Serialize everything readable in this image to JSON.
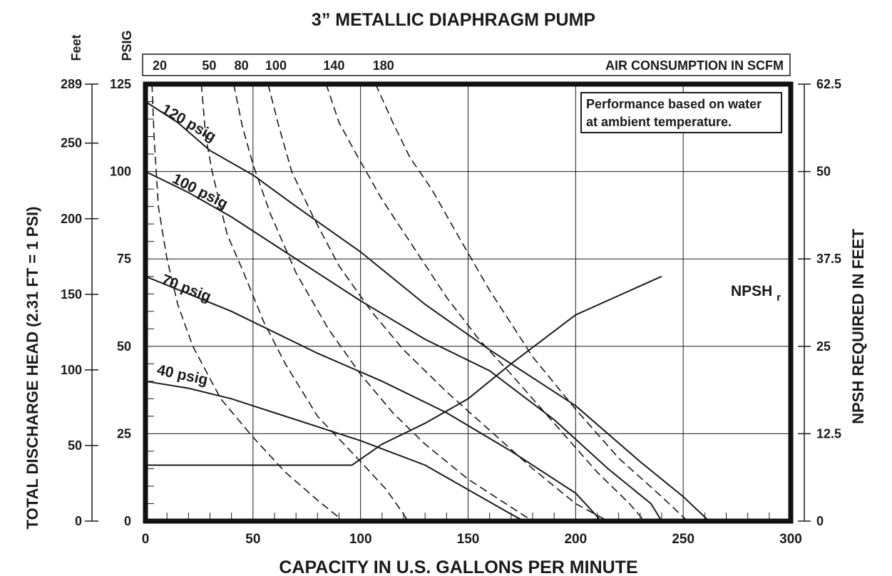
{
  "chart_data": {
    "type": "line",
    "title": "3” METALLIC DIAPHRAGM PUMP",
    "xlabel": "CAPACITY IN U.S. GALLONS PER MINUTE",
    "ylabel_feet": "TOTAL DISCHARGE HEAD (2.31 FT = 1 PSI)",
    "ylabel_right": "NPSH REQUIRED IN FEET",
    "feet_unit": "Feet",
    "psig_unit": "PSIG",
    "xlim": [
      0,
      300
    ],
    "ylim_psig": [
      0,
      125
    ],
    "ylim_feet": [
      0,
      289
    ],
    "ylim_npsh": [
      0,
      62.5
    ],
    "x_ticks": [
      "0",
      "50",
      "100",
      "150",
      "200",
      "250",
      "300"
    ],
    "psig_ticks": [
      "0",
      "25",
      "50",
      "75",
      "100",
      "125"
    ],
    "feet_ticks": [
      "0",
      "50",
      "100",
      "150",
      "200",
      "250",
      "289"
    ],
    "npsh_ticks": [
      "0",
      "12.5",
      "25",
      "37.5",
      "50",
      "62.5"
    ],
    "grid": true,
    "note_line1": "Performance based on water",
    "note_line2": "at ambient temperature.",
    "npsh_label": "NPSH",
    "npsh_label_sub": "r",
    "air_header": "AIR CONSUMPTION IN SCFM",
    "air_scfm": [
      {
        "label": "20",
        "points": [
          [
            3,
            125
          ],
          [
            4,
            110
          ],
          [
            6,
            90
          ],
          [
            10,
            75
          ],
          [
            15,
            62
          ],
          [
            22,
            50
          ],
          [
            35,
            35
          ],
          [
            50,
            24
          ],
          [
            65,
            14
          ],
          [
            80,
            6
          ],
          [
            90,
            1
          ]
        ]
      },
      {
        "label": "50",
        "points": [
          [
            26,
            125
          ],
          [
            28,
            110
          ],
          [
            31,
            100
          ],
          [
            38,
            82
          ],
          [
            45,
            72
          ],
          [
            55,
            57
          ],
          [
            65,
            45
          ],
          [
            80,
            30
          ],
          [
            100,
            17
          ],
          [
            112,
            9
          ],
          [
            120,
            2
          ],
          [
            122,
            0
          ]
        ]
      },
      {
        "label": "80",
        "points": [
          [
            41,
            125
          ],
          [
            45,
            113
          ],
          [
            50,
            102
          ],
          [
            58,
            88
          ],
          [
            70,
            71
          ],
          [
            85,
            55
          ],
          [
            100,
            42
          ],
          [
            115,
            31
          ],
          [
            130,
            22
          ],
          [
            150,
            12
          ],
          [
            170,
            4
          ],
          [
            180,
            0
          ]
        ]
      },
      {
        "label": "100",
        "points": [
          [
            57,
            125
          ],
          [
            62,
            113
          ],
          [
            68,
            100
          ],
          [
            78,
            87
          ],
          [
            90,
            73
          ],
          [
            105,
            60
          ],
          [
            120,
            49
          ],
          [
            140,
            37
          ],
          [
            160,
            26
          ],
          [
            180,
            15
          ],
          [
            200,
            5
          ],
          [
            215,
            0
          ]
        ]
      },
      {
        "label": "140",
        "points": [
          [
            84,
            125
          ],
          [
            90,
            114
          ],
          [
            98,
            105
          ],
          [
            110,
            92
          ],
          [
            125,
            78
          ],
          [
            140,
            64
          ],
          [
            155,
            52
          ],
          [
            170,
            42
          ],
          [
            190,
            28
          ],
          [
            210,
            14
          ],
          [
            225,
            5
          ],
          [
            232,
            0
          ]
        ]
      },
      {
        "label": "180",
        "points": [
          [
            107,
            125
          ],
          [
            115,
            114
          ],
          [
            123,
            104
          ],
          [
            133,
            95
          ],
          [
            145,
            82
          ],
          [
            160,
            66
          ],
          [
            180,
            47
          ],
          [
            200,
            32
          ],
          [
            220,
            18
          ],
          [
            240,
            7
          ],
          [
            252,
            0
          ]
        ]
      }
    ],
    "series": [
      {
        "name": "120 psig",
        "points": [
          [
            0,
            120
          ],
          [
            15,
            114
          ],
          [
            30,
            106
          ],
          [
            50,
            99
          ],
          [
            70,
            90
          ],
          [
            100,
            77
          ],
          [
            130,
            62
          ],
          [
            160,
            49
          ],
          [
            200,
            33
          ],
          [
            230,
            17
          ],
          [
            250,
            7
          ],
          [
            262,
            0
          ]
        ]
      },
      {
        "name": "100 psig",
        "points": [
          [
            0,
            100
          ],
          [
            20,
            94
          ],
          [
            40,
            87
          ],
          [
            60,
            79
          ],
          [
            80,
            71
          ],
          [
            100,
            63
          ],
          [
            130,
            52
          ],
          [
            160,
            43
          ],
          [
            190,
            29
          ],
          [
            215,
            15
          ],
          [
            235,
            5
          ],
          [
            240,
            0
          ]
        ]
      },
      {
        "name": "70 psig",
        "points": [
          [
            0,
            70
          ],
          [
            20,
            65
          ],
          [
            40,
            60
          ],
          [
            60,
            54
          ],
          [
            80,
            48
          ],
          [
            110,
            40
          ],
          [
            140,
            31
          ],
          [
            170,
            20
          ],
          [
            200,
            8
          ],
          [
            212,
            0
          ]
        ]
      },
      {
        "name": "40 psig",
        "points": [
          [
            0,
            40
          ],
          [
            20,
            38
          ],
          [
            40,
            35
          ],
          [
            60,
            31
          ],
          [
            80,
            27
          ],
          [
            100,
            23
          ],
          [
            130,
            16
          ],
          [
            150,
            9
          ],
          [
            170,
            2
          ],
          [
            176,
            0
          ]
        ]
      }
    ],
    "npsh_curve": {
      "points": [
        [
          0,
          8
        ],
        [
          96,
          8
        ],
        [
          110,
          11
        ],
        [
          130,
          14
        ],
        [
          150,
          17.5
        ],
        [
          170,
          22.5
        ],
        [
          200,
          29.5
        ],
        [
          240,
          35
        ]
      ]
    }
  }
}
